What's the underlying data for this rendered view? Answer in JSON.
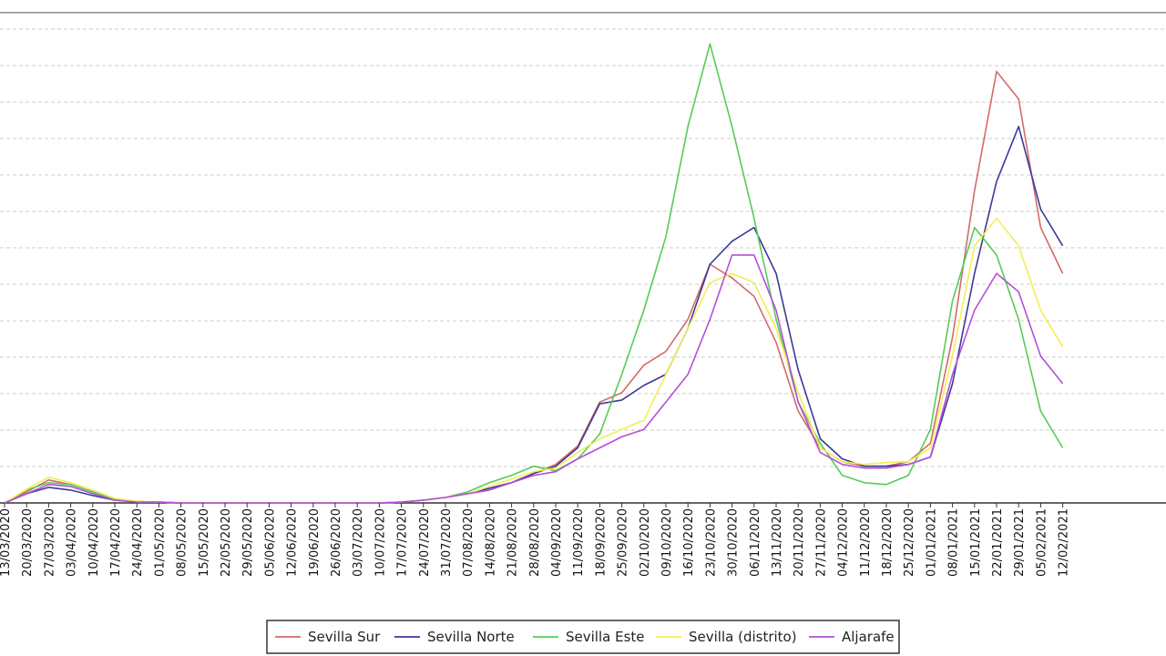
{
  "chart_data": {
    "type": "line",
    "x": [
      "13/03/2020",
      "20/03/2020",
      "27/03/2020",
      "03/04/2020",
      "10/04/2020",
      "17/04/2020",
      "24/04/2020",
      "01/05/2020",
      "08/05/2020",
      "15/05/2020",
      "22/05/2020",
      "29/05/2020",
      "05/06/2020",
      "12/06/2020",
      "19/06/2020",
      "26/06/2020",
      "03/07/2020",
      "10/07/2020",
      "17/07/2020",
      "24/07/2020",
      "31/07/2020",
      "07/08/2020",
      "14/08/2020",
      "21/08/2020",
      "28/08/2020",
      "04/09/2020",
      "11/09/2020",
      "18/09/2020",
      "25/09/2020",
      "02/10/2020",
      "09/10/2020",
      "16/10/2020",
      "23/10/2020",
      "30/10/2020",
      "06/11/2020",
      "13/11/2020",
      "20/11/2020",
      "27/11/2020",
      "04/12/2020",
      "11/12/2020",
      "18/12/2020",
      "25/12/2020",
      "01/01/2021",
      "08/01/2021",
      "15/01/2021",
      "22/01/2021",
      "29/01/2021",
      "05/02/2021",
      "12/02/2021"
    ],
    "series": [
      {
        "name": "Sevilla Sur",
        "color": "#d46a6a",
        "values": [
          0,
          12,
          25,
          20,
          12,
          4,
          1,
          1,
          0,
          0,
          0,
          0,
          0,
          0,
          0,
          0,
          0,
          0,
          1,
          3,
          6,
          10,
          16,
          22,
          32,
          42,
          62,
          110,
          120,
          150,
          165,
          200,
          260,
          245,
          225,
          175,
          100,
          60,
          45,
          40,
          40,
          45,
          65,
          180,
          340,
          470,
          440,
          300,
          250
        ]
      },
      {
        "name": "Sevilla Norte",
        "color": "#3a3a99",
        "values": [
          0,
          10,
          17,
          14,
          8,
          3,
          1,
          1,
          0,
          0,
          0,
          0,
          0,
          0,
          0,
          0,
          0,
          0,
          1,
          3,
          6,
          10,
          16,
          22,
          32,
          40,
          60,
          108,
          112,
          128,
          140,
          190,
          260,
          285,
          300,
          250,
          145,
          70,
          48,
          40,
          40,
          42,
          50,
          130,
          250,
          350,
          410,
          320,
          280
        ]
      },
      {
        "name": "Sevilla Este",
        "color": "#55cc55",
        "values": [
          0,
          14,
          22,
          20,
          12,
          4,
          1,
          1,
          0,
          0,
          0,
          0,
          0,
          0,
          0,
          0,
          0,
          0,
          1,
          3,
          6,
          12,
          22,
          30,
          40,
          35,
          48,
          75,
          140,
          210,
          290,
          410,
          500,
          410,
          310,
          200,
          110,
          65,
          30,
          22,
          20,
          30,
          80,
          220,
          300,
          270,
          200,
          100,
          60
        ]
      },
      {
        "name": "Sevilla (distrito)",
        "color": "#f2ee55",
        "values": [
          0,
          15,
          28,
          22,
          14,
          5,
          2,
          1,
          0,
          0,
          0,
          0,
          0,
          0,
          0,
          0,
          0,
          0,
          1,
          3,
          6,
          10,
          18,
          26,
          34,
          38,
          55,
          70,
          80,
          90,
          140,
          190,
          240,
          250,
          240,
          190,
          120,
          60,
          45,
          42,
          44,
          45,
          60,
          160,
          280,
          310,
          280,
          210,
          170
        ]
      },
      {
        "name": "Aljarafe",
        "color": "#b54fd6",
        "values": [
          0,
          10,
          20,
          18,
          10,
          3,
          1,
          1,
          0,
          0,
          0,
          0,
          0,
          0,
          0,
          0,
          0,
          0,
          1,
          3,
          6,
          10,
          14,
          22,
          30,
          34,
          48,
          60,
          72,
          80,
          110,
          140,
          200,
          270,
          270,
          210,
          110,
          55,
          42,
          38,
          38,
          42,
          50,
          140,
          210,
          250,
          230,
          160,
          130
        ]
      }
    ],
    "ylim": [
      0,
      520
    ],
    "grid": true,
    "legend_position": "bottom",
    "title": "",
    "xlabel": "",
    "ylabel": ""
  }
}
